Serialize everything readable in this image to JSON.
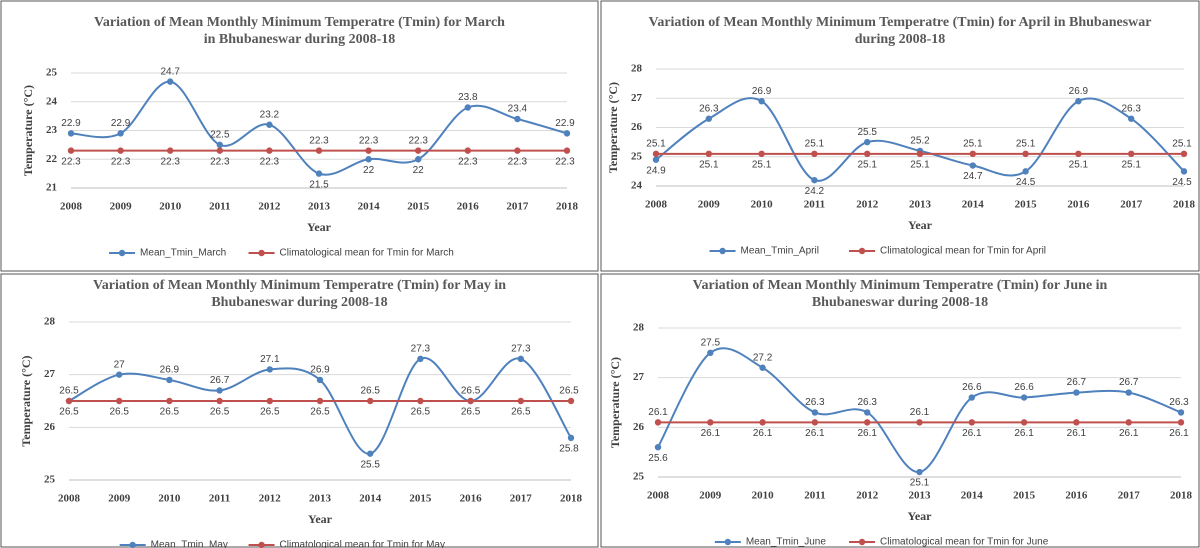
{
  "chart_data": [
    {
      "type": "line",
      "title": [
        "Variation of Mean Monthly Minimum Temperatre (Tmin) for March",
        "in Bhubaneswar during 2008-18"
      ],
      "xlabel": "Year",
      "ylabel": "Temperature (°C)",
      "categories": [
        "2008",
        "2009",
        "2010",
        "2011",
        "2012",
        "2013",
        "2014",
        "2015",
        "2016",
        "2017",
        "2018"
      ],
      "series": [
        {
          "name": "Mean_Tmin_March",
          "color": "#4f81bd",
          "values": [
            22.9,
            22.9,
            24.7,
            22.5,
            23.2,
            21.5,
            22,
            22,
            23.8,
            23.4,
            22.9
          ]
        },
        {
          "name": "Climatological mean for Tmin for March",
          "color": "#c0504d",
          "values": [
            22.3,
            22.3,
            22.3,
            22.3,
            22.3,
            22.3,
            22.3,
            22.3,
            22.3,
            22.3,
            22.3
          ]
        }
      ],
      "ylim": [
        21,
        25
      ],
      "yticks": [
        21,
        22,
        23,
        24,
        25
      ],
      "grid": true,
      "legend": "bottom"
    },
    {
      "type": "line",
      "title": [
        "Variation of Mean Monthly Minimum Temperatre (Tmin) for April in Bhubaneswar",
        "during 2008-18"
      ],
      "xlabel": "Year",
      "ylabel": "Temperature (°C)",
      "categories": [
        "2008",
        "2009",
        "2010",
        "2011",
        "2012",
        "2013",
        "2014",
        "2015",
        "2016",
        "2017",
        "2018"
      ],
      "series": [
        {
          "name": "Mean_Tmin_April",
          "color": "#4f81bd",
          "values": [
            24.9,
            26.3,
            26.9,
            24.2,
            25.5,
            25.2,
            24.7,
            24.5,
            26.9,
            26.3,
            24.5
          ]
        },
        {
          "name": "Climatological mean for Tmin for April",
          "color": "#c0504d",
          "values": [
            25.1,
            25.1,
            25.1,
            25.1,
            25.1,
            25.1,
            25.1,
            25.1,
            25.1,
            25.1,
            25.1
          ]
        }
      ],
      "ylim": [
        24,
        28
      ],
      "yticks": [
        24,
        25,
        26,
        27,
        28
      ],
      "grid": true,
      "legend": "bottom"
    },
    {
      "type": "line",
      "title": [
        "Variation of Mean Monthly Minimum Temperatre (Tmin) for May in",
        "Bhubaneswar during 2008-18"
      ],
      "xlabel": "Year",
      "ylabel": "Temperature (°C)",
      "categories": [
        "2008",
        "2009",
        "2010",
        "2011",
        "2012",
        "2013",
        "2014",
        "2015",
        "2016",
        "2017",
        "2018"
      ],
      "series": [
        {
          "name": "Mean_Tmin_May",
          "color": "#4f81bd",
          "values": [
            26.5,
            27,
            26.9,
            26.7,
            27.1,
            26.9,
            25.5,
            27.3,
            26.5,
            27.3,
            25.8
          ]
        },
        {
          "name": "Climatological mean for Tmin for May",
          "color": "#c0504d",
          "values": [
            26.5,
            26.5,
            26.5,
            26.5,
            26.5,
            26.5,
            26.5,
            26.5,
            26.5,
            26.5,
            26.5
          ]
        }
      ],
      "ylim": [
        25,
        28
      ],
      "yticks": [
        25,
        26,
        27,
        28
      ],
      "grid": true,
      "legend": "bottom"
    },
    {
      "type": "line",
      "title": [
        "Variation of Mean Monthly Minimum Temperatre (Tmin) for June in",
        "Bhubaneswar during 2008-18"
      ],
      "xlabel": "Year",
      "ylabel": "Temperature (°C)",
      "categories": [
        "2008",
        "2009",
        "2010",
        "2011",
        "2012",
        "2013",
        "2014",
        "2015",
        "2016",
        "2017",
        "2018"
      ],
      "series": [
        {
          "name": "Mean_Tmin_June",
          "color": "#4f81bd",
          "values": [
            25.6,
            27.5,
            27.2,
            26.3,
            26.3,
            25.1,
            26.6,
            26.6,
            26.7,
            26.7,
            26.3
          ]
        },
        {
          "name": "Climatological mean for Tmin for June",
          "color": "#c0504d",
          "values": [
            26.1,
            26.1,
            26.1,
            26.1,
            26.1,
            26.1,
            26.1,
            26.1,
            26.1,
            26.1,
            26.1
          ]
        }
      ],
      "ylim": [
        25,
        28
      ],
      "yticks": [
        25,
        26,
        27,
        28
      ],
      "grid": true,
      "legend": "bottom"
    }
  ]
}
